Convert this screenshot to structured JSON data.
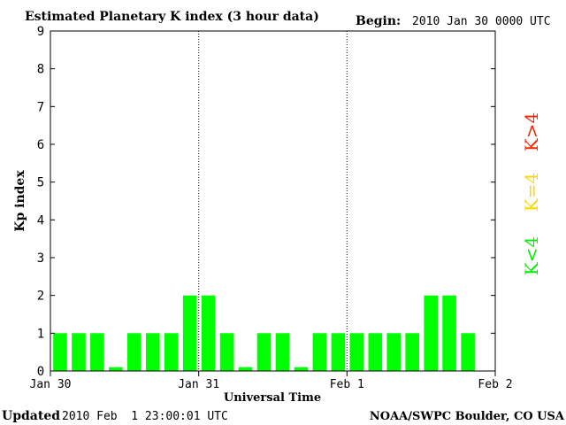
{
  "chart_data": {
    "type": "bar",
    "title": "Estimated Planetary K index (3 hour data)",
    "begin_label": "Begin:",
    "begin_value": "2010 Jan 30 0000 UTC",
    "xlabel": "Universal Time",
    "ylabel": "Kp index",
    "ylim": [
      0,
      9
    ],
    "yticks": [
      "0",
      "1",
      "2",
      "3",
      "4",
      "5",
      "6",
      "7",
      "8",
      "9"
    ],
    "xticks": [
      "Jan 30",
      "Jan 31",
      "Feb 1",
      "Feb 2"
    ],
    "day_separators": true,
    "values": [
      1,
      1,
      1,
      0.1,
      1,
      1,
      1,
      2,
      2,
      1,
      0.1,
      1,
      1,
      0.1,
      1,
      1,
      1,
      1,
      1,
      1,
      2,
      2,
      1
    ],
    "bar_color": "#00ff00",
    "legend": [
      {
        "label": "K<4",
        "color": "#00ee00"
      },
      {
        "label": "K=4",
        "color": "#ffd700"
      },
      {
        "label": "K>4",
        "color": "#ff2000"
      }
    ],
    "footer_left_label": "Updated",
    "footer_left_value": "2010 Feb  1 23:00:01 UTC",
    "footer_right": "NOAA/SWPC Boulder, CO USA"
  }
}
